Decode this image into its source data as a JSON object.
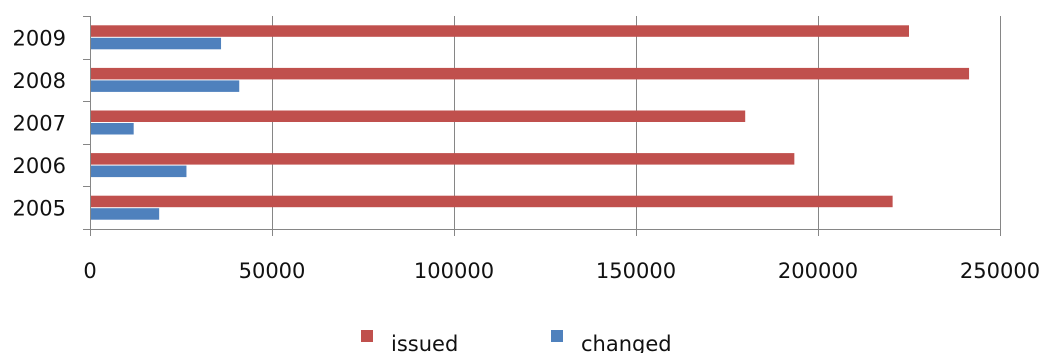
{
  "chart_data": {
    "type": "bar",
    "orientation": "horizontal",
    "categories": [
      "2009",
      "2008",
      "2007",
      "2006",
      "2005"
    ],
    "series": [
      {
        "name": "issued",
        "color": "#c0504d",
        "values": [
          225000,
          241500,
          180000,
          193500,
          220500
        ]
      },
      {
        "name": "changed",
        "color": "#4f81bd",
        "values": [
          36000,
          41000,
          12000,
          26500,
          19000
        ]
      }
    ],
    "xlim": [
      0,
      250000
    ],
    "x_ticks": [
      0,
      50000,
      100000,
      150000,
      200000,
      250000
    ],
    "x_tick_labels": [
      "0",
      "50000",
      "100000",
      "150000",
      "200000",
      "250000"
    ],
    "grid": true,
    "legend": {
      "placement": "bottom"
    }
  }
}
